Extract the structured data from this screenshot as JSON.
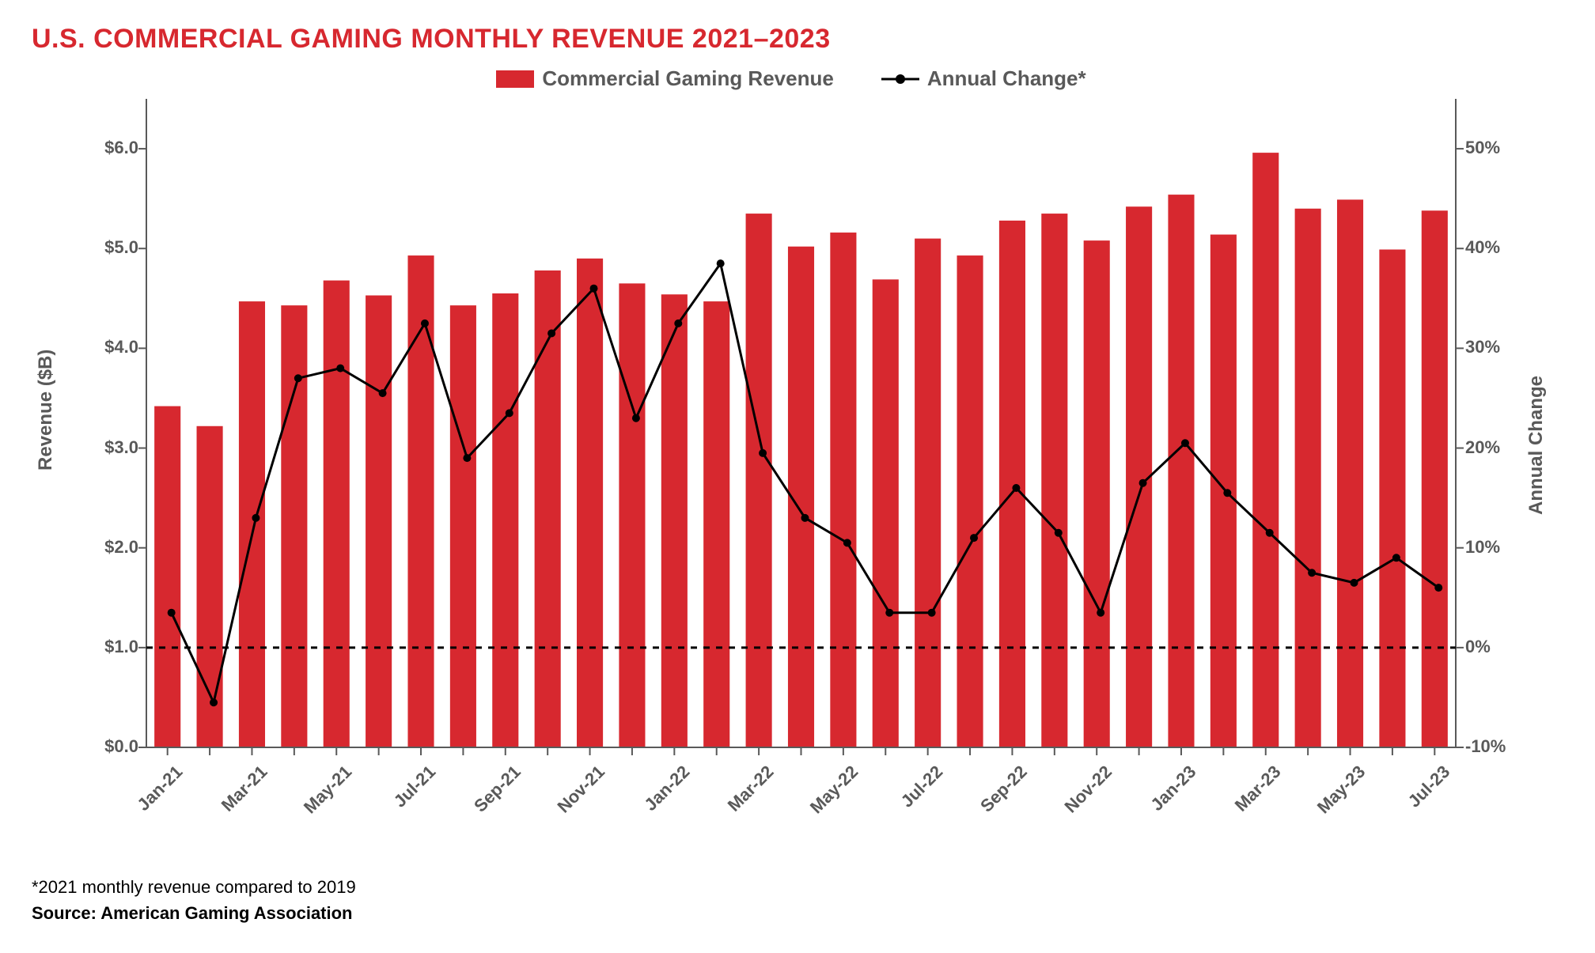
{
  "title": {
    "text": "U.S. COMMERCIAL GAMING MONTHLY REVENUE 2021–2023",
    "color": "#d7282f",
    "fontsize": 34,
    "fontweight": 900
  },
  "legend": {
    "bar_label": "Commercial Gaming Revenue",
    "line_label": "Annual Change*",
    "text_color": "#595959",
    "fontsize": 26
  },
  "chart": {
    "type": "combo-bar-line",
    "background_color": "#ffffff",
    "bar_color": "#d7282f",
    "line_color": "#000000",
    "marker_style": "circle",
    "line_width": 3,
    "marker_size": 10,
    "bar_gap_ratio": 0.38,
    "zero_line": {
      "dash": "8,8",
      "color": "#000000",
      "width": 3
    },
    "tick_color": "#595959",
    "tick_fontsize": 22,
    "x_labels_shown": [
      "Jan-21",
      "Mar-21",
      "May-21",
      "Jul-21",
      "Sep-21",
      "Nov-21",
      "Jan-22",
      "Mar-22",
      "May-22",
      "Jul-22",
      "Sep-22",
      "Nov-22",
      "Jan-23",
      "Mar-23",
      "May-23",
      "Jul-23"
    ],
    "x_label_rotation": -45,
    "categories": [
      "Jan-21",
      "Feb-21",
      "Mar-21",
      "Apr-21",
      "May-21",
      "Jun-21",
      "Jul-21",
      "Aug-21",
      "Sep-21",
      "Oct-21",
      "Nov-21",
      "Dec-21",
      "Jan-22",
      "Feb-22",
      "Mar-22",
      "Apr-22",
      "May-22",
      "Jun-22",
      "Jul-22",
      "Aug-22",
      "Sep-22",
      "Oct-22",
      "Nov-22",
      "Dec-22",
      "Jan-23",
      "Feb-23",
      "Mar-23",
      "Apr-23",
      "May-23",
      "Jun-23",
      "Jul-23"
    ],
    "left_axis": {
      "label": "Revenue ($B)",
      "min": 0.0,
      "max": 6.5,
      "ticks": [
        0.0,
        1.0,
        2.0,
        3.0,
        4.0,
        5.0,
        6.0
      ],
      "tick_labels": [
        "$0.0",
        "$1.0",
        "$2.0",
        "$3.0",
        "$4.0",
        "$5.0",
        "$6.0"
      ],
      "label_fontsize": 24,
      "label_color": "#595959"
    },
    "right_axis": {
      "label": "Annual Change",
      "min": -10,
      "max": 55,
      "ticks": [
        -10,
        0,
        10,
        20,
        30,
        40,
        50
      ],
      "tick_labels": [
        "-10%",
        "0%",
        "10%",
        "20%",
        "30%",
        "40%",
        "50%"
      ],
      "label_fontsize": 24,
      "label_color": "#595959"
    },
    "bar_values": [
      3.42,
      3.22,
      4.47,
      4.43,
      4.68,
      4.53,
      4.93,
      4.43,
      4.55,
      4.78,
      4.9,
      4.65,
      4.54,
      4.47,
      5.35,
      5.02,
      5.16,
      4.69,
      5.1,
      4.93,
      5.28,
      5.35,
      5.08,
      5.42,
      5.54,
      5.14,
      5.96,
      5.4,
      5.49,
      4.99,
      5.38
    ],
    "line_values": [
      3.5,
      -5.5,
      13.0,
      27.0,
      28.0,
      25.5,
      32.5,
      19.0,
      23.5,
      31.5,
      36.0,
      23.0,
      32.5,
      38.5,
      19.5,
      13.0,
      10.5,
      3.5,
      3.5,
      11.0,
      16.0,
      11.5,
      3.5,
      16.5,
      20.5,
      15.5,
      11.5,
      7.5,
      6.5,
      9.0,
      6.0
    ]
  },
  "footnote": {
    "note": "*2021 monthly revenue compared to 2019",
    "source_label": "Source: ",
    "source_text": "American Gaming Association",
    "fontsize": 22
  }
}
